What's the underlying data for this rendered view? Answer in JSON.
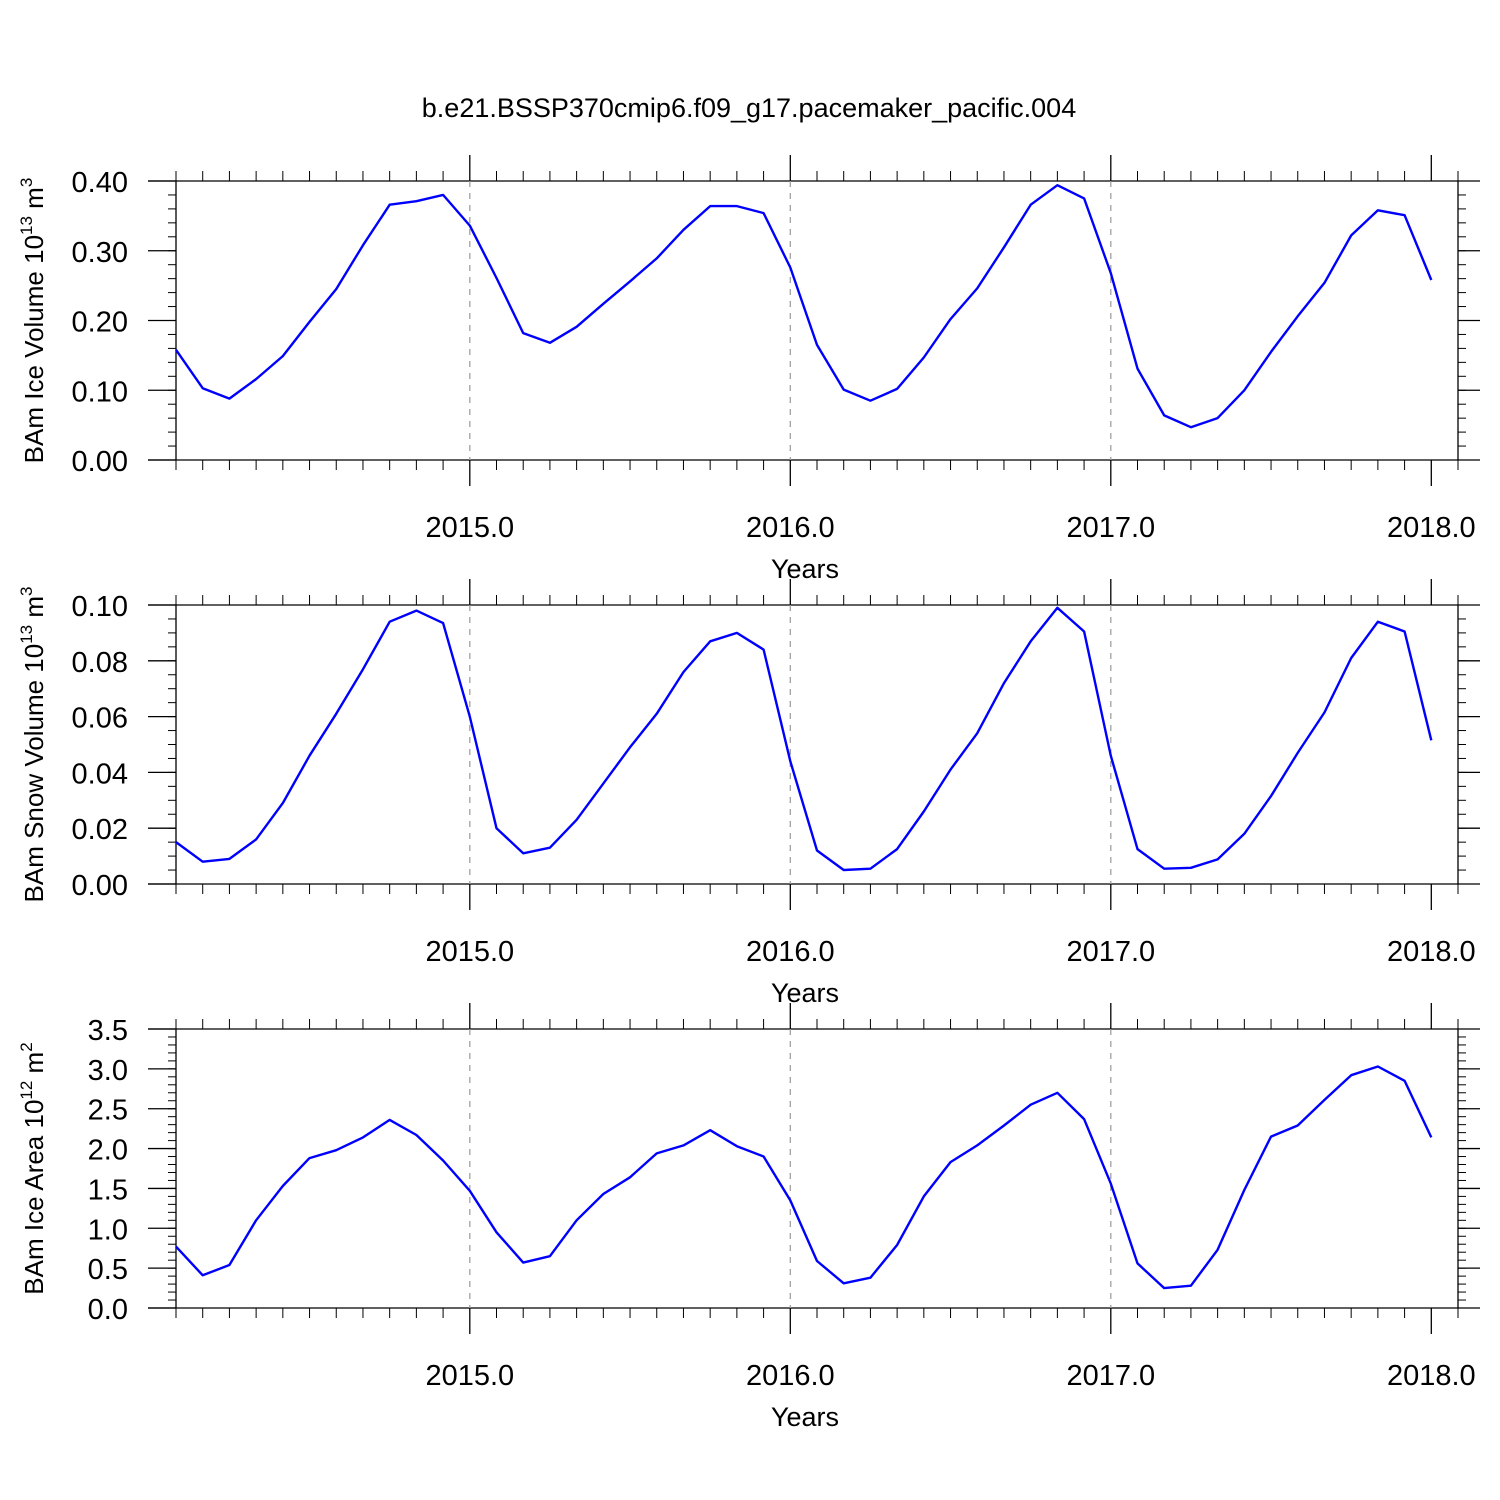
{
  "figure": {
    "title": "b.e21.BSSP370cmip6.f09_g17.pacemaker_pacific.004"
  },
  "chart_data": [
    {
      "type": "line",
      "ylabel": {
        "text": "BAm Ice Volume 10",
        "exp": "13",
        "unit": " m",
        "unit_exp": "3"
      },
      "xlabel": "Years",
      "xlim": [
        2014.0833,
        2018.0833
      ],
      "ylim": [
        0.0,
        0.4
      ],
      "yticks": [
        "0.00",
        "0.10",
        "0.20",
        "0.30",
        "0.40"
      ],
      "ytick_values": [
        0.0,
        0.1,
        0.2,
        0.3,
        0.4
      ],
      "yminor_step": 0.02,
      "xticks": [
        "2015.0",
        "2016.0",
        "2017.0",
        "2018.0"
      ],
      "xtick_values": [
        2015.0,
        2016.0,
        2017.0,
        2018.0
      ],
      "grid": "vertical-dashed-at-major-x",
      "line_color": "#0000ff",
      "x_start": 2014.0833,
      "x_step": 0.0833333,
      "values": [
        0.158,
        0.103,
        0.088,
        0.116,
        0.149,
        0.198,
        0.245,
        0.308,
        0.366,
        0.371,
        0.38,
        0.336,
        0.261,
        0.182,
        0.168,
        0.191,
        0.224,
        0.256,
        0.289,
        0.33,
        0.364,
        0.364,
        0.354,
        0.276,
        0.165,
        0.101,
        0.085,
        0.102,
        0.147,
        0.202,
        0.246,
        0.305,
        0.366,
        0.394,
        0.375,
        0.268,
        0.131,
        0.064,
        0.047,
        0.06,
        0.1,
        0.155,
        0.206,
        0.254,
        0.322,
        0.358,
        0.351,
        0.258
      ]
    },
    {
      "type": "line",
      "ylabel": {
        "text": "BAm Snow Volume 10",
        "exp": "13",
        "unit": " m",
        "unit_exp": "3"
      },
      "xlabel": "Years",
      "xlim": [
        2014.0833,
        2018.0833
      ],
      "ylim": [
        0.0,
        0.1
      ],
      "yticks": [
        "0.00",
        "0.02",
        "0.04",
        "0.06",
        "0.08",
        "0.10"
      ],
      "ytick_values": [
        0.0,
        0.02,
        0.04,
        0.06,
        0.08,
        0.1
      ],
      "yminor_step": 0.005,
      "xticks": [
        "2015.0",
        "2016.0",
        "2017.0",
        "2018.0"
      ],
      "xtick_values": [
        2015.0,
        2016.0,
        2017.0,
        2018.0
      ],
      "grid": "vertical-dashed-at-major-x",
      "line_color": "#0000ff",
      "x_start": 2014.0833,
      "x_step": 0.0833333,
      "values": [
        0.015,
        0.008,
        0.009,
        0.016,
        0.029,
        0.046,
        0.061,
        0.077,
        0.094,
        0.098,
        0.0935,
        0.06,
        0.02,
        0.011,
        0.013,
        0.023,
        0.036,
        0.049,
        0.061,
        0.076,
        0.087,
        0.09,
        0.084,
        0.044,
        0.012,
        0.005,
        0.0055,
        0.0125,
        0.026,
        0.041,
        0.054,
        0.072,
        0.087,
        0.099,
        0.0905,
        0.046,
        0.0125,
        0.0055,
        0.0058,
        0.0088,
        0.018,
        0.0315,
        0.047,
        0.0615,
        0.081,
        0.094,
        0.0905,
        0.0515
      ]
    },
    {
      "type": "line",
      "ylabel": {
        "text": "BAm Ice Area 10",
        "exp": "12",
        "unit": " m",
        "unit_exp": "2"
      },
      "xlabel": "Years",
      "xlim": [
        2014.0833,
        2018.0833
      ],
      "ylim": [
        0.0,
        3.5
      ],
      "yticks": [
        "0.0",
        "0.5",
        "1.0",
        "1.5",
        "2.0",
        "2.5",
        "3.0",
        "3.5"
      ],
      "ytick_values": [
        0.0,
        0.5,
        1.0,
        1.5,
        2.0,
        2.5,
        3.0,
        3.5
      ],
      "yminor_step": 0.1,
      "xticks": [
        "2015.0",
        "2016.0",
        "2017.0",
        "2018.0"
      ],
      "xtick_values": [
        2015.0,
        2016.0,
        2017.0,
        2018.0
      ],
      "grid": "vertical-dashed-at-major-x",
      "line_color": "#0000ff",
      "x_start": 2014.0833,
      "x_step": 0.0833333,
      "values": [
        0.77,
        0.41,
        0.54,
        1.1,
        1.53,
        1.88,
        1.98,
        2.14,
        2.36,
        2.17,
        1.85,
        1.47,
        0.95,
        0.57,
        0.65,
        1.1,
        1.43,
        1.64,
        1.94,
        2.04,
        2.23,
        2.03,
        1.9,
        1.35,
        0.59,
        0.31,
        0.38,
        0.79,
        1.4,
        1.83,
        2.04,
        2.29,
        2.55,
        2.7,
        2.37,
        1.56,
        0.56,
        0.25,
        0.28,
        0.73,
        1.48,
        2.15,
        2.29,
        2.61,
        2.92,
        3.03,
        2.85,
        2.14
      ]
    }
  ]
}
